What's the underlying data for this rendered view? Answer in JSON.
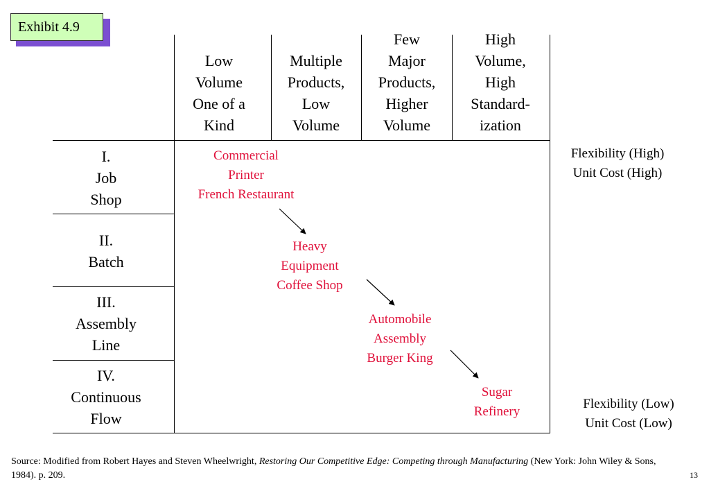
{
  "exhibit_label": "Exhibit 4.9",
  "columns": [
    {
      "lines": [
        "Low",
        "Volume",
        "One of a",
        "Kind"
      ]
    },
    {
      "lines": [
        "Multiple",
        "Products,",
        "Low",
        "Volume"
      ]
    },
    {
      "lines": [
        "Few",
        "Major",
        "Products,",
        "Higher",
        "Volume"
      ]
    },
    {
      "lines": [
        "High",
        "Volume,",
        "High",
        "Standard-",
        "ization"
      ]
    }
  ],
  "rows": [
    {
      "lines": [
        "I.",
        "Job",
        "Shop"
      ]
    },
    {
      "lines": [
        "II.",
        "Batch"
      ]
    },
    {
      "lines": [
        "III.",
        "Assembly",
        "Line"
      ]
    },
    {
      "lines": [
        "IV.",
        "Continuous",
        "Flow"
      ]
    }
  ],
  "examples": [
    {
      "lines": [
        "Commercial",
        "Printer",
        "French Restaurant"
      ]
    },
    {
      "lines": [
        "Heavy",
        "Equipment",
        "Coffee Shop"
      ]
    },
    {
      "lines": [
        "Automobile",
        "Assembly",
        "Burger King"
      ]
    },
    {
      "lines": [
        "Sugar",
        "Refinery"
      ]
    }
  ],
  "flexibility_high": {
    "line1": "Flexibility (High)",
    "line2": "Unit Cost (High)"
  },
  "flexibility_low": {
    "line1": "Flexibility (Low)",
    "line2": "Unit Cost (Low)"
  },
  "source": {
    "prefix": "Source: Modified from Robert Hayes and Steven Wheelwright, ",
    "title": "Restoring Our Competitive Edge: Competing through Manufacturing",
    "suffix": " (New York: John Wiley & Sons, 1984). p. 209."
  },
  "page_number": "13",
  "colors": {
    "example_text": "#e0103a",
    "exhibit_bg": "#cfffb8",
    "exhibit_shadow": "#7b4fd1"
  }
}
